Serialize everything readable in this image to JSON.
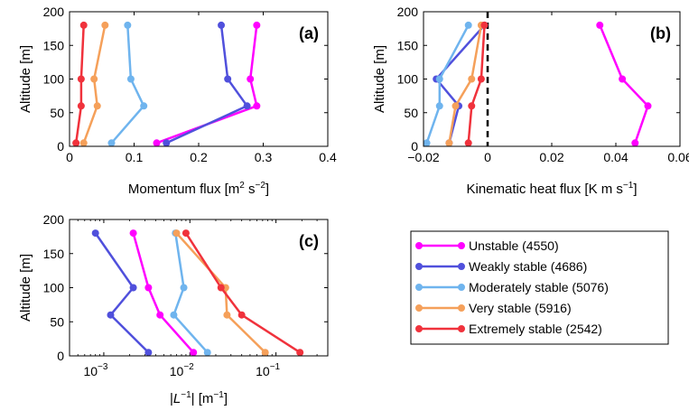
{
  "series_meta": [
    {
      "name": "Unstable (4550)",
      "color": "#ff00ff"
    },
    {
      "name": "Weakly stable (4686)",
      "color": "#5050dc"
    },
    {
      "name": "Moderately stable (5076)",
      "color": "#6fb4ee"
    },
    {
      "name": "Very stable (5916)",
      "color": "#f5a05a"
    },
    {
      "name": "Extremely stable (2542)",
      "color": "#f0323c"
    }
  ],
  "chart_data": [
    {
      "type": "line",
      "panel": "(a)",
      "xlabel": "Momentum flux [m",
      "xlabel_sup1": "2",
      "xlabel_mid": " s",
      "xlabel_sup2": "−2",
      "xlabel_end": "]",
      "ylabel": "Altitude [m]",
      "xlim": [
        0,
        0.4
      ],
      "ylim": [
        0,
        200
      ],
      "xticks": [
        0,
        0.1,
        0.2,
        0.3,
        0.4
      ],
      "xtick_labels": [
        "0",
        "0.1",
        "0.2",
        "0.3",
        "0.4"
      ],
      "yticks": [
        0,
        50,
        100,
        150,
        200
      ],
      "ytick_labels": [
        "0",
        "50",
        "100",
        "150",
        "200"
      ],
      "altitudes": [
        5,
        60,
        100,
        180
      ],
      "series": [
        {
          "name": "Unstable (4550)",
          "x": [
            0.135,
            0.29,
            0.28,
            0.29
          ]
        },
        {
          "name": "Weakly stable (4686)",
          "x": [
            0.15,
            0.275,
            0.245,
            0.235
          ]
        },
        {
          "name": "Moderately stable (5076)",
          "x": [
            0.065,
            0.115,
            0.095,
            0.09
          ]
        },
        {
          "name": "Very stable (5916)",
          "x": [
            0.022,
            0.043,
            0.038,
            0.055
          ]
        },
        {
          "name": "Extremely stable (2542)",
          "x": [
            0.01,
            0.018,
            0.018,
            0.022
          ]
        }
      ]
    },
    {
      "type": "line",
      "panel": "(b)",
      "xlabel": "Kinematic heat flux [K m s",
      "xlabel_sup": "−1",
      "xlabel_end": "]",
      "ylabel": "Altitude [m]",
      "xlim": [
        -0.02,
        0.06
      ],
      "ylim": [
        0,
        200
      ],
      "xticks": [
        -0.02,
        0,
        0.02,
        0.04,
        0.06
      ],
      "xtick_labels": [
        "−0.02",
        "0",
        "0.02",
        "0.04",
        "0.06"
      ],
      "yticks": [
        0,
        50,
        100,
        150,
        200
      ],
      "ytick_labels": [
        "0",
        "50",
        "100",
        "150",
        "200"
      ],
      "altitudes": [
        5,
        60,
        100,
        180
      ],
      "zero_line": true,
      "series": [
        {
          "name": "Unstable (4550)",
          "x": [
            0.046,
            0.05,
            0.042,
            0.035
          ]
        },
        {
          "name": "Weakly stable (4686)",
          "x": [
            -0.012,
            -0.009,
            -0.016,
            -0.001
          ]
        },
        {
          "name": "Moderately stable (5076)",
          "x": [
            -0.019,
            -0.015,
            -0.015,
            -0.006
          ]
        },
        {
          "name": "Very stable (5916)",
          "x": [
            -0.012,
            -0.01,
            -0.005,
            -0.002
          ]
        },
        {
          "name": "Extremely stable (2542)",
          "x": [
            -0.006,
            -0.005,
            -0.002,
            -0.001
          ]
        }
      ]
    },
    {
      "type": "line",
      "panel": "(c)",
      "xscale": "log",
      "xlabel_pre": "|",
      "xlabel_L": "L",
      "xlabel_sup": "−1",
      "xlabel_end": "| [m",
      "xlabel_sup2": "−1",
      "xlabel_close": "]",
      "ylabel": "Altitude [m]",
      "xlim": [
        0.0004,
        0.4
      ],
      "ylim": [
        0,
        200
      ],
      "xticks": [
        0.001,
        0.01,
        0.1
      ],
      "xtick_labels": [
        {
          "base": "10",
          "exp": "−3"
        },
        {
          "base": "10",
          "exp": "−2"
        },
        {
          "base": "10",
          "exp": "−1"
        }
      ],
      "yticks": [
        0,
        50,
        100,
        150,
        200
      ],
      "ytick_labels": [
        "0",
        "50",
        "100",
        "150",
        "200"
      ],
      "altitudes": [
        5,
        60,
        100,
        180
      ],
      "series": [
        {
          "name": "Unstable (4550)",
          "x": [
            0.011,
            0.0045,
            0.0033,
            0.0022
          ]
        },
        {
          "name": "Weakly stable (4686)",
          "x": [
            0.0033,
            0.0012,
            0.0022,
            0.0008
          ]
        },
        {
          "name": "Moderately stable (5076)",
          "x": [
            0.016,
            0.0065,
            0.0085,
            0.0068
          ]
        },
        {
          "name": "Very stable (5916)",
          "x": [
            0.075,
            0.027,
            0.026,
            0.007
          ]
        },
        {
          "name": "Extremely stable (2542)",
          "x": [
            0.19,
            0.04,
            0.023,
            0.009
          ]
        }
      ]
    }
  ]
}
